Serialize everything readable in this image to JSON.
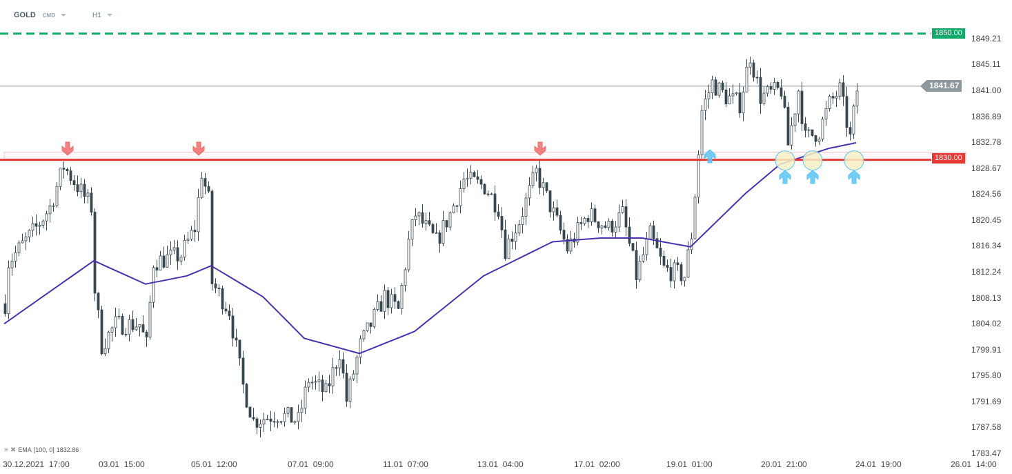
{
  "header": {
    "symbol": "GOLD",
    "category": "CMD",
    "timeframe": "H1"
  },
  "indicator": {
    "label": "EMA",
    "params": "[100,  0]",
    "value": "1832.86",
    "color": "#4a2fb0"
  },
  "levels": {
    "resistance": {
      "label": "1850.00",
      "value": 1850.0,
      "color": "#12a96a"
    },
    "support": {
      "label": "1830.00",
      "value": 1830.0,
      "color": "#e53935"
    },
    "current": {
      "label": "1841.67",
      "value": 1841.67,
      "color": "#8e979c"
    }
  },
  "chart_data": {
    "type": "candlestick",
    "title": "",
    "price_ticks": [
      "1849.21",
      "1845.11",
      "1841.00",
      "1836.89",
      "1832.78",
      "1828.67",
      "1824.56",
      "1820.45",
      "1816.34",
      "1812.24",
      "1808.13",
      "1804.02",
      "1799.91",
      "1795.80",
      "1791.69",
      "1787.58",
      "1783.47"
    ],
    "ylim": [
      1783.47,
      1849.21
    ],
    "time_ticks": [
      "30.12.2021  17:00",
      "03.01  15:00",
      "05.01  12:00",
      "07.01  09:00",
      "11.01  07:00",
      "13.01  04:00",
      "17.01  02:00",
      "19.01  01:00",
      "20.01  21:00",
      "24.01  19:00",
      "26.01  14:00"
    ],
    "price_path_bar_close": [
      [
        0,
        1807.2
      ],
      [
        1,
        1813.8
      ],
      [
        9,
        1819.2
      ],
      [
        13,
        1822.5
      ],
      [
        17,
        1829
      ],
      [
        21,
        1825.8
      ],
      [
        25,
        1822.5
      ],
      [
        26,
        1809.4
      ],
      [
        28,
        1800.6
      ],
      [
        32,
        1803.9
      ],
      [
        39,
        1803.9
      ],
      [
        41,
        1800.6
      ],
      [
        43,
        1813.8
      ],
      [
        51,
        1814.9
      ],
      [
        55,
        1819.2
      ],
      [
        57,
        1828
      ],
      [
        59,
        1823.6
      ],
      [
        60,
        1810.5
      ],
      [
        65,
        1806.1
      ],
      [
        69,
        1794.1
      ],
      [
        72,
        1788.6
      ],
      [
        79,
        1789.7
      ],
      [
        85,
        1788.6
      ],
      [
        88,
        1795.2
      ],
      [
        93,
        1793
      ],
      [
        97,
        1799.6
      ],
      [
        99,
        1791.9
      ],
      [
        103,
        1800.6
      ],
      [
        110,
        1808.3
      ],
      [
        114,
        1806.1
      ],
      [
        117,
        1817
      ],
      [
        119,
        1821.4
      ],
      [
        125,
        1817
      ],
      [
        129,
        1821.4
      ],
      [
        133,
        1826.9
      ],
      [
        139,
        1825.8
      ],
      [
        143,
        1822.5
      ],
      [
        145,
        1815.9
      ],
      [
        149,
        1820.3
      ],
      [
        154,
        1828
      ],
      [
        159,
        1821.4
      ],
      [
        163,
        1815.9
      ],
      [
        169,
        1821.4
      ],
      [
        175,
        1819.2
      ],
      [
        179,
        1821.4
      ],
      [
        183,
        1811.6
      ],
      [
        187,
        1818.1
      ],
      [
        191,
        1812.7
      ],
      [
        197,
        1811.6
      ],
      [
        199,
        1818.1
      ],
      [
        202,
        1837.8
      ],
      [
        205,
        1842.2
      ],
      [
        209,
        1840
      ],
      [
        213,
        1838.9
      ],
      [
        216,
        1846.6
      ],
      [
        219,
        1840
      ],
      [
        225,
        1841.1
      ],
      [
        227,
        1832.4
      ],
      [
        230,
        1841.1
      ],
      [
        232,
        1833.4
      ],
      [
        236,
        1834.5
      ],
      [
        239,
        1838.9
      ],
      [
        242,
        1841.1
      ],
      [
        245,
        1833.4
      ],
      [
        247,
        1841.1
      ]
    ],
    "ema_path": [
      [
        0,
        1804
      ],
      [
        26,
        1814
      ],
      [
        41,
        1810.3
      ],
      [
        53,
        1811.6
      ],
      [
        60,
        1813.2
      ],
      [
        75,
        1808.3
      ],
      [
        87,
        1801.7
      ],
      [
        103,
        1799.3
      ],
      [
        119,
        1802.8
      ],
      [
        139,
        1811.6
      ],
      [
        159,
        1817
      ],
      [
        173,
        1817.6
      ],
      [
        185,
        1817.6
      ],
      [
        199,
        1816.2
      ],
      [
        215,
        1824.7
      ],
      [
        225,
        1829.3
      ],
      [
        239,
        1831.8
      ],
      [
        247,
        1832.7
      ]
    ],
    "sell_signals_bar": [
      18,
      56,
      155
    ],
    "buy_signals_bar": [
      205
    ],
    "touch_points_bar": [
      226,
      234,
      246
    ],
    "colors": {
      "bull": "#ffffff",
      "bear": "#37474f",
      "outline": "#37474f",
      "signal_down": "#f06b6b",
      "signal_up": "#5bc4f5",
      "touch": "#f6f0c4",
      "zone": "#f5c6c6"
    }
  }
}
